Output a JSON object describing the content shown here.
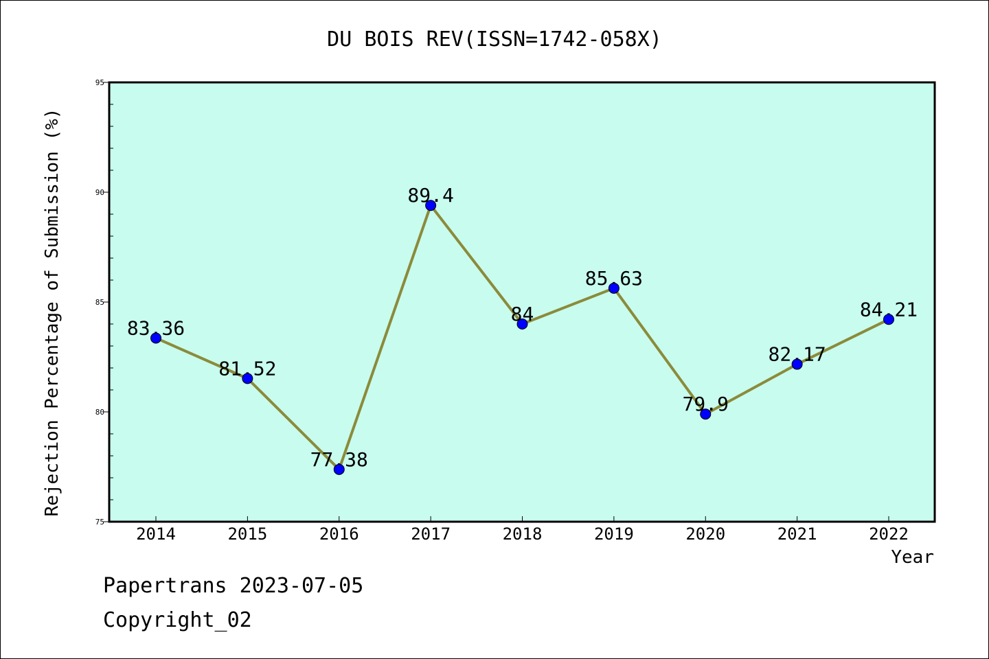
{
  "chart_data": {
    "type": "line",
    "title": "DU BOIS REV(ISSN=1742-058X)",
    "xlabel": "Year",
    "ylabel": "Rejection Percentage of Submission (%)",
    "ylim": [
      75,
      95
    ],
    "yticks": [
      75,
      80,
      85,
      90,
      95
    ],
    "categories": [
      "2014",
      "2015",
      "2016",
      "2017",
      "2018",
      "2019",
      "2020",
      "2021",
      "2022"
    ],
    "values": [
      83.36,
      81.52,
      77.38,
      89.4,
      84,
      85.63,
      79.9,
      82.17,
      84.21
    ],
    "data_labels": [
      "83.36",
      "81.52",
      "77.38",
      "89.4",
      "84",
      "85.63",
      "79.9",
      "82.17",
      "84.21"
    ],
    "grid": false,
    "colors": {
      "plot_background": "#c8fcef",
      "line": "#8b8b3a",
      "marker": "#0000ff"
    }
  },
  "footer": {
    "line1": "Papertrans 2023-07-05",
    "line2": "Copyright_02"
  }
}
